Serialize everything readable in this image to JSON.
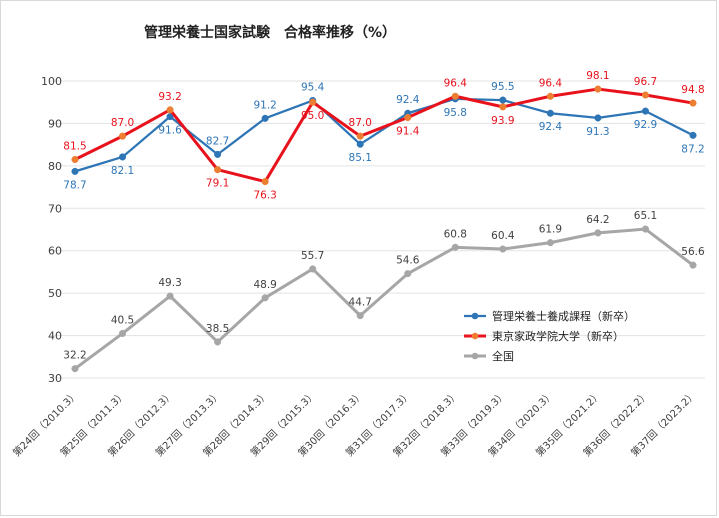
{
  "chart_data": {
    "type": "line",
    "title": "管理栄養士国家試験　合格率推移（%）",
    "categories": [
      "第24回（2010.3）",
      "第25回（2011.3）",
      "第26回（2012.3）",
      "第27回（2013.3）",
      "第28回（2014.3）",
      "第29回（2015.3）",
      "第30回（2016.3）",
      "第31回（2017.3）",
      "第32回（2018.3）",
      "第33回（2019.3）",
      "第34回（2020.3）",
      "第35回（2021.2）",
      "第36回（2022.2）",
      "第37回（2023.2）"
    ],
    "ylim": [
      30,
      100
    ],
    "yticks": [
      30,
      40,
      50,
      60,
      70,
      80,
      90,
      100
    ],
    "grid": true,
    "legend_position": "right",
    "series": [
      {
        "name": "管理栄養士養成課程（新卒）",
        "color": "#2e75b6",
        "label_color": "#2e75b6",
        "values": [
          78.7,
          82.1,
          91.6,
          82.7,
          91.2,
          95.4,
          85.1,
          92.4,
          95.8,
          95.5,
          92.4,
          91.3,
          92.9,
          87.2
        ]
      },
      {
        "name": "東京家政学院大学（新卒）",
        "color": "#e8121c",
        "label_color": "#e8121c",
        "values": [
          81.5,
          87.0,
          93.2,
          79.1,
          76.3,
          95.0,
          87.0,
          91.4,
          96.4,
          93.9,
          96.4,
          98.1,
          96.7,
          94.8
        ]
      },
      {
        "name": "全国",
        "color": "#a6a6a6",
        "label_color": "#404040",
        "values": [
          32.2,
          40.5,
          49.3,
          38.5,
          48.9,
          55.7,
          44.7,
          54.6,
          60.8,
          60.4,
          61.9,
          64.2,
          65.1,
          56.6
        ]
      }
    ]
  }
}
